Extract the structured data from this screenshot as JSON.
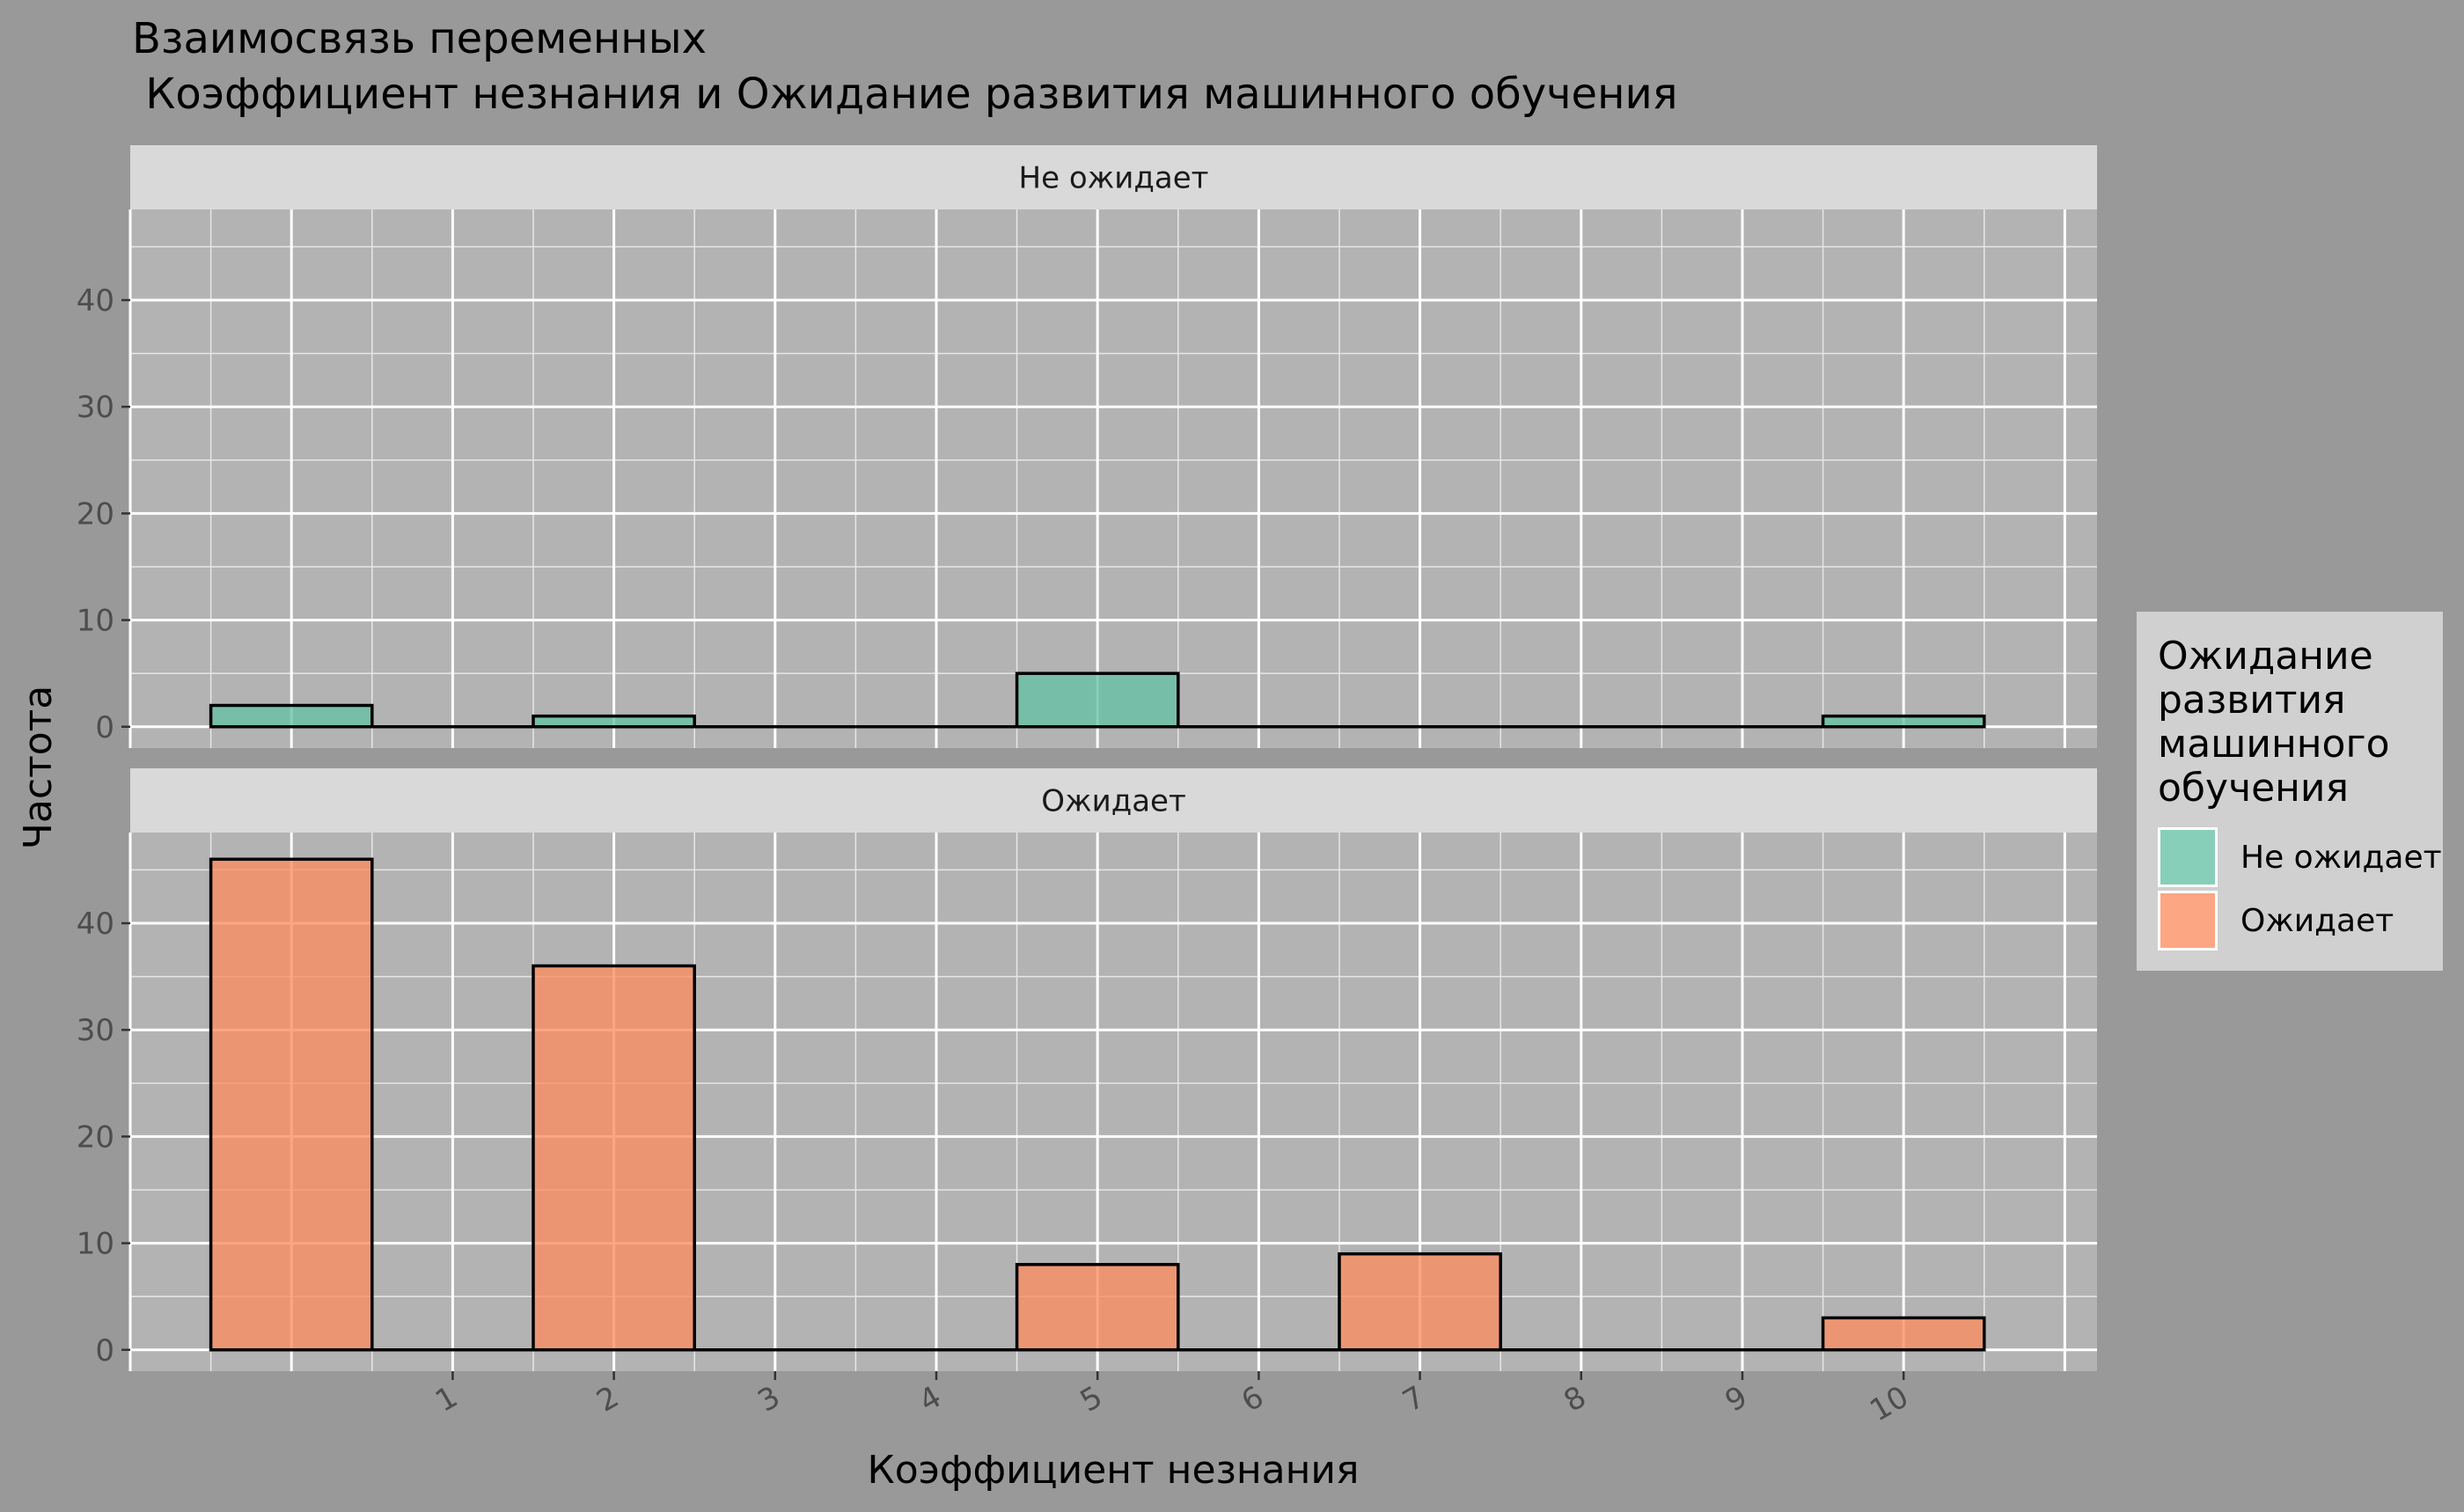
{
  "chart_data": {
    "type": "bar",
    "title_line1": "Взаимосвязь переменных",
    "title_line2": " Коэффициент незнания и Ожидание развития машинного обучения",
    "xlabel": "Коэффициент незнания",
    "ylabel": "Частота",
    "x_ticks": [
      1,
      2,
      3,
      4,
      5,
      6,
      7,
      8,
      9,
      10
    ],
    "xlim": [
      -1,
      11.2
    ],
    "ylim": [
      -2,
      48.5
    ],
    "y_ticks": [
      0,
      10,
      20,
      30,
      40
    ],
    "bin_width": 1,
    "bin_starts": [
      -0.5,
      0.5,
      1.5,
      2.5,
      3.5,
      4.5,
      5.5,
      6.5,
      7.5,
      8.5,
      9.5
    ],
    "facets": [
      {
        "label": "Не ожидает",
        "color": "#66c2a5",
        "values": [
          2,
          0,
          1,
          0,
          0,
          5,
          0,
          0,
          0,
          0,
          1
        ]
      },
      {
        "label": "Ожидает",
        "color": "#fc8d62",
        "values": [
          46,
          0,
          36,
          0,
          0,
          8,
          0,
          9,
          0,
          0,
          3
        ]
      }
    ],
    "legend": {
      "title_lines": [
        "Ожидание",
        "развития",
        "машинного",
        "обучения"
      ],
      "entries": [
        {
          "label": "Не ожидает",
          "color": "#66c2a5"
        },
        {
          "label": "Ожидает",
          "color": "#fc8d62"
        }
      ],
      "position": "right"
    },
    "grid": true
  }
}
